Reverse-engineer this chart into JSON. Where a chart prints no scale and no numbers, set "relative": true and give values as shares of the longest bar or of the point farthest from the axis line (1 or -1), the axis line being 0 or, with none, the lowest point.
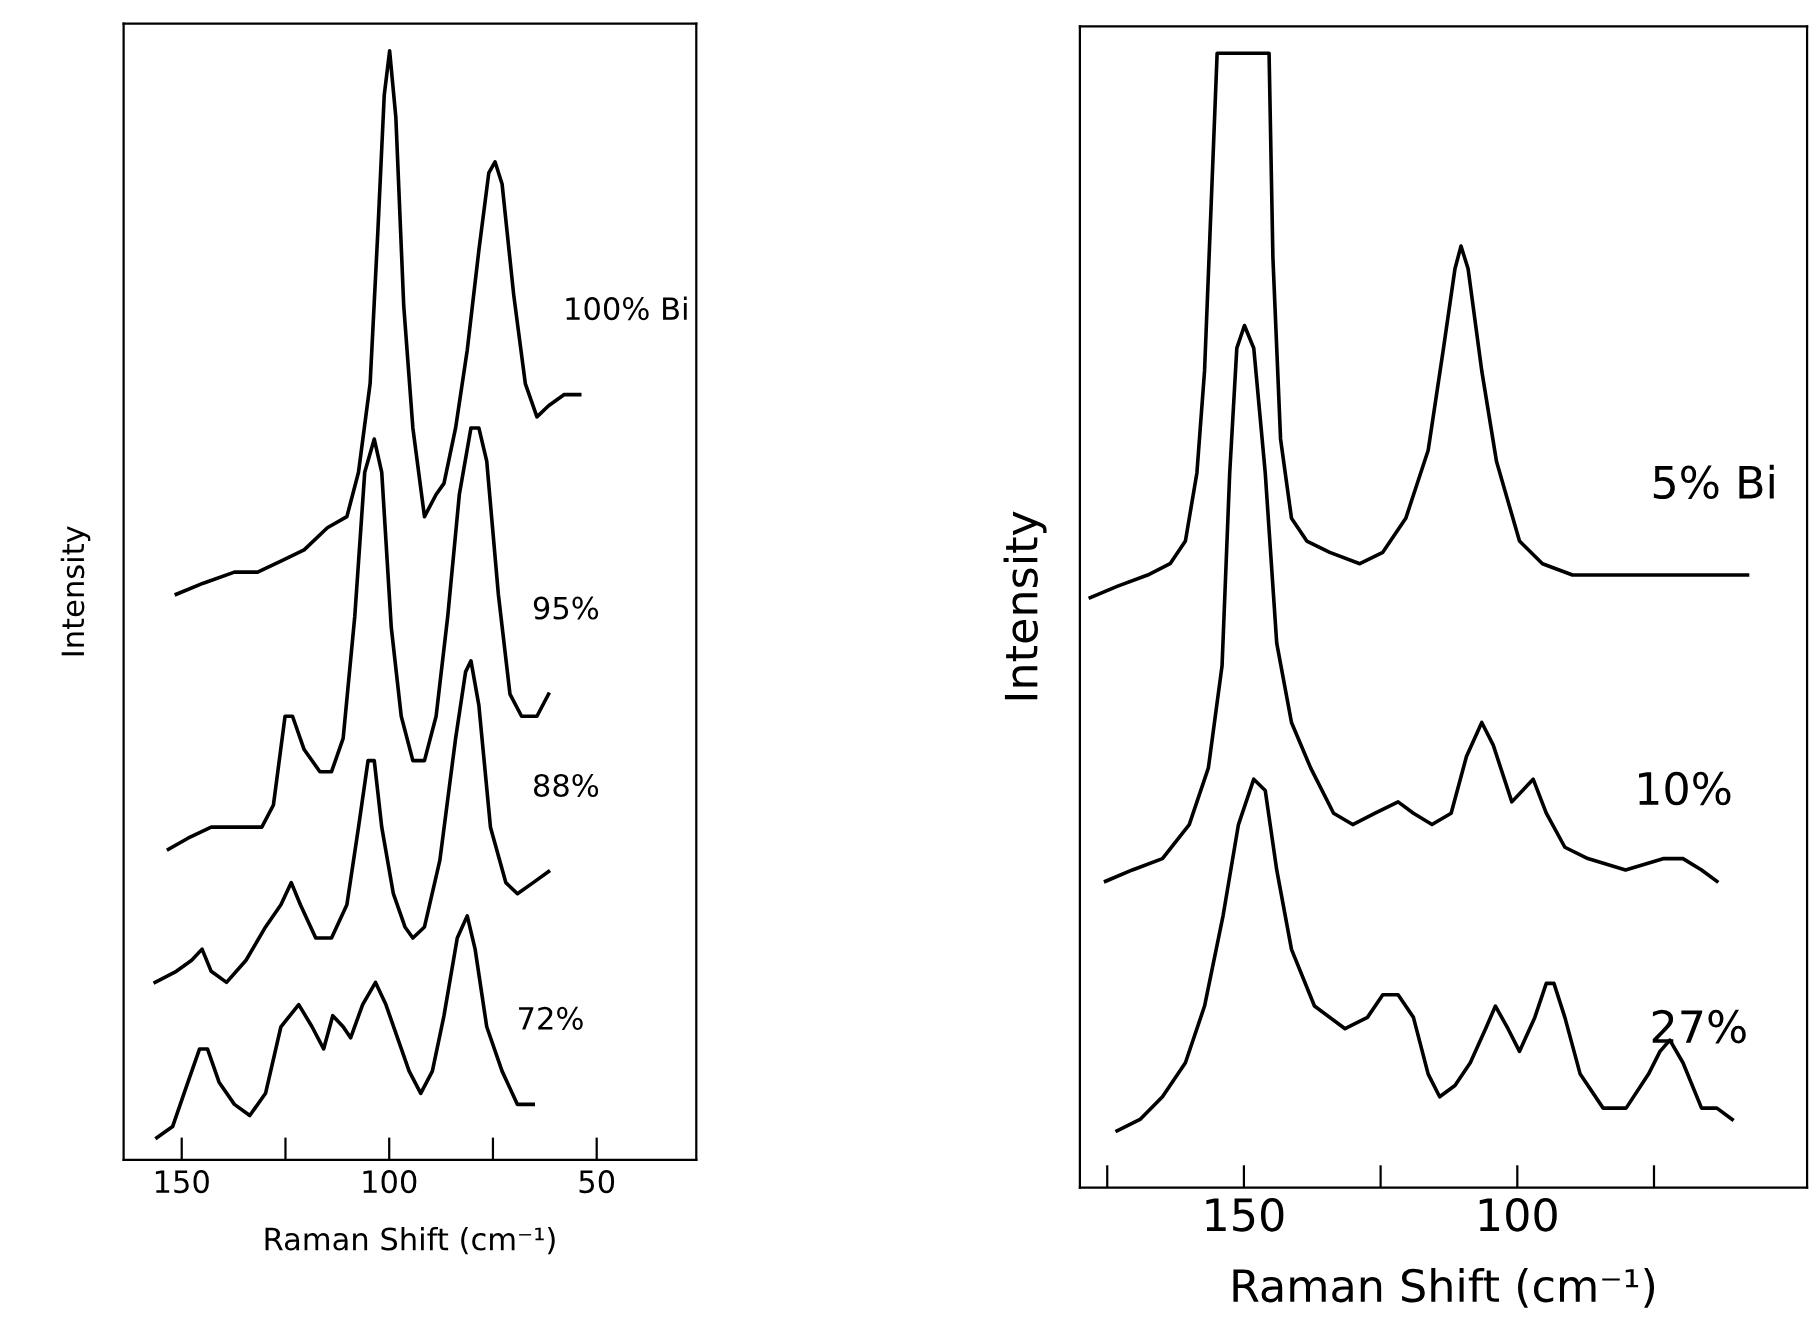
{
  "chart_data": [
    {
      "type": "line",
      "relative": true,
      "xlabel": "Raman Shift (cm⁻¹)",
      "ylabel": "Intensity",
      "xlim": [
        164,
        26
      ],
      "xticks": [
        150,
        {
          "value": 125,
          "label": null
        },
        100,
        {
          "value": 75,
          "label": null
        },
        50
      ],
      "tick_labels": "x",
      "grid": false,
      "legend": false,
      "marker": "none",
      "line_style": "solid",
      "series": [
        {
          "name": "100% Bi",
          "color": "#000000",
          "x": [
            151.3,
            144.8,
            137.3,
            131.7,
            126.1,
            120.5,
            114.9,
            110.2,
            107.4,
            104.6,
            102.7,
            101.2,
            99.9,
            98.4,
            96.5,
            94.3,
            91.5,
            88.7,
            86.8,
            84.0,
            81.2,
            78.4,
            76.0,
            74.5,
            72.8,
            70.0,
            67.2,
            64.4,
            61.6,
            57.9,
            54.1
          ],
          "values": [
            0.51,
            0.52,
            0.53,
            0.53,
            0.54,
            0.55,
            0.57,
            0.58,
            0.62,
            0.7,
            0.84,
            0.96,
            1.0,
            0.94,
            0.77,
            0.66,
            0.58,
            0.6,
            0.61,
            0.66,
            0.73,
            0.82,
            0.89,
            0.9,
            0.88,
            0.78,
            0.7,
            0.67,
            0.68,
            0.69,
            0.69
          ]
        },
        {
          "name": "95%",
          "color": "#000000",
          "x": [
            153.2,
            148.5,
            142.9,
            137.3,
            130.7,
            127.9,
            125.1,
            123.3,
            120.5,
            116.7,
            113.9,
            111.1,
            108.3,
            105.9,
            103.6,
            101.8,
            99.5,
            97.1,
            94.3,
            91.5,
            88.7,
            85.9,
            83.1,
            80.3,
            78.4,
            76.5,
            73.7,
            70.9,
            68.1,
            64.4,
            61.6
          ],
          "values": [
            0.28,
            0.29,
            0.3,
            0.3,
            0.3,
            0.32,
            0.4,
            0.4,
            0.37,
            0.35,
            0.35,
            0.38,
            0.49,
            0.62,
            0.65,
            0.62,
            0.48,
            0.4,
            0.36,
            0.36,
            0.4,
            0.49,
            0.6,
            0.66,
            0.66,
            0.63,
            0.51,
            0.42,
            0.4,
            0.4,
            0.42
          ]
        },
        {
          "name": "88%",
          "color": "#000000",
          "x": [
            156.4,
            151.3,
            147.6,
            145.1,
            142.9,
            139.2,
            134.5,
            129.8,
            126.1,
            123.6,
            121.4,
            117.7,
            113.9,
            110.2,
            107.4,
            105.1,
            103.6,
            101.8,
            99.0,
            96.2,
            94.3,
            91.5,
            87.8,
            84.0,
            81.6,
            80.3,
            78.4,
            75.6,
            71.9,
            69.1,
            65.3,
            61.6
          ],
          "values": [
            0.16,
            0.17,
            0.18,
            0.19,
            0.17,
            0.16,
            0.18,
            0.21,
            0.23,
            0.25,
            0.23,
            0.2,
            0.2,
            0.23,
            0.3,
            0.36,
            0.36,
            0.3,
            0.24,
            0.21,
            0.2,
            0.21,
            0.27,
            0.38,
            0.44,
            0.45,
            0.41,
            0.3,
            0.25,
            0.24,
            0.25,
            0.26
          ]
        },
        {
          "name": "72%",
          "color": "#000000",
          "x": [
            156.0,
            152.2,
            148.5,
            145.7,
            143.8,
            141.0,
            137.3,
            133.6,
            129.8,
            126.1,
            121.8,
            118.6,
            115.8,
            113.6,
            111.1,
            109.3,
            106.4,
            103.3,
            100.8,
            98.0,
            95.2,
            92.4,
            89.6,
            86.8,
            83.6,
            81.2,
            79.3,
            76.5,
            72.8,
            69.1,
            65.3
          ],
          "values": [
            0.02,
            0.03,
            0.07,
            0.1,
            0.1,
            0.07,
            0.05,
            0.04,
            0.06,
            0.12,
            0.14,
            0.12,
            0.1,
            0.13,
            0.12,
            0.11,
            0.14,
            0.16,
            0.14,
            0.11,
            0.08,
            0.06,
            0.08,
            0.13,
            0.2,
            0.22,
            0.19,
            0.12,
            0.08,
            0.05,
            0.05
          ]
        }
      ]
    },
    {
      "type": "line",
      "relative": true,
      "xlabel": "Raman Shift (cm⁻¹)",
      "ylabel": "Intensity",
      "xlim": [
        180,
        47
      ],
      "xticks": [
        {
          "value": 175,
          "label": null
        },
        150,
        {
          "value": 125,
          "label": null
        },
        100,
        {
          "value": 75,
          "label": null
        }
      ],
      "tick_labels": "x",
      "grid": false,
      "legend": false,
      "marker": "none",
      "line_style": "solid",
      "series": [
        {
          "name": "5% Bi",
          "color": "#000000",
          "x": [
            178.1,
            173.2,
            167.6,
            163.5,
            160.7,
            158.6,
            157.2,
            155.8,
            154.9,
            145.4,
            144.7,
            143.3,
            141.3,
            138.5,
            134.3,
            128.8,
            124.6,
            120.4,
            116.3,
            113.5,
            111.4,
            110.3,
            109.0,
            106.5,
            103.8,
            99.6,
            95.4,
            89.9,
            82.9,
            76.0,
            69.0,
            63.5,
            57.9
          ],
          "values": [
            0.52,
            0.53,
            0.54,
            0.55,
            0.57,
            0.63,
            0.72,
            0.89,
            1.0,
            1.0,
            0.82,
            0.66,
            0.59,
            0.57,
            0.56,
            0.55,
            0.56,
            0.59,
            0.65,
            0.74,
            0.81,
            0.83,
            0.81,
            0.72,
            0.64,
            0.57,
            0.55,
            0.54,
            0.54,
            0.54,
            0.54,
            0.54,
            0.54
          ]
        },
        {
          "name": "10%",
          "color": "#000000",
          "x": [
            175.3,
            170.4,
            164.9,
            160.0,
            156.5,
            154.0,
            152.6,
            151.3,
            149.9,
            148.2,
            146.1,
            144.0,
            141.3,
            137.8,
            133.6,
            130.1,
            126.0,
            121.8,
            119.0,
            115.6,
            112.1,
            109.3,
            106.5,
            104.4,
            101.0,
            97.1,
            94.7,
            91.3,
            87.1,
            80.2,
            73.2,
            69.7,
            66.3,
            63.5
          ],
          "values": [
            0.27,
            0.28,
            0.29,
            0.32,
            0.37,
            0.46,
            0.63,
            0.74,
            0.76,
            0.74,
            0.63,
            0.48,
            0.41,
            0.37,
            0.33,
            0.32,
            0.33,
            0.34,
            0.33,
            0.32,
            0.33,
            0.38,
            0.41,
            0.39,
            0.34,
            0.36,
            0.33,
            0.3,
            0.29,
            0.28,
            0.29,
            0.29,
            0.28,
            0.27
          ]
        },
        {
          "name": "27%",
          "color": "#000000",
          "x": [
            173.2,
            169.0,
            164.9,
            160.7,
            157.2,
            153.8,
            151.0,
            148.2,
            146.1,
            144.0,
            141.3,
            137.1,
            131.5,
            127.4,
            124.6,
            121.8,
            119.0,
            116.3,
            114.2,
            111.4,
            108.6,
            105.8,
            104.0,
            101.7,
            99.6,
            96.8,
            94.7,
            93.3,
            91.3,
            88.5,
            84.3,
            80.1,
            76.0,
            73.9,
            72.1,
            69.7,
            66.3,
            63.5,
            60.7
          ],
          "values": [
            0.05,
            0.06,
            0.08,
            0.11,
            0.16,
            0.24,
            0.32,
            0.36,
            0.35,
            0.28,
            0.21,
            0.16,
            0.14,
            0.15,
            0.17,
            0.17,
            0.15,
            0.1,
            0.08,
            0.09,
            0.11,
            0.14,
            0.16,
            0.14,
            0.12,
            0.15,
            0.18,
            0.18,
            0.15,
            0.1,
            0.07,
            0.07,
            0.1,
            0.12,
            0.13,
            0.11,
            0.07,
            0.07,
            0.06
          ]
        }
      ]
    }
  ]
}
